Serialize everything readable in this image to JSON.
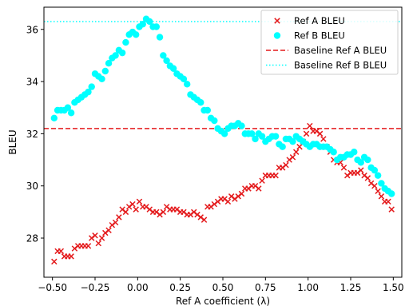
{
  "chart_data": {
    "type": "scatter",
    "xlabel": "Ref A coefficient (λ)",
    "ylabel": "BLEU",
    "xlim": [
      -0.55,
      1.55
    ],
    "ylim": [
      26.5,
      36.85
    ],
    "xticks": [
      -0.5,
      -0.25,
      0.0,
      0.25,
      0.5,
      0.75,
      1.0,
      1.25,
      1.5
    ],
    "xtick_labels": [
      "−0.50",
      "−0.25",
      "0.00",
      "0.25",
      "0.50",
      "0.75",
      "1.00",
      "1.25",
      "1.50"
    ],
    "yticks": [
      28,
      30,
      32,
      34,
      36
    ],
    "ytick_labels": [
      "28",
      "30",
      "32",
      "34",
      "36"
    ],
    "grid": false,
    "legend_position": "top-right",
    "series": [
      {
        "name": "Ref A BLEU",
        "marker": "x",
        "color": "#e41a1c",
        "points": [
          [
            -0.49,
            27.1
          ],
          [
            -0.47,
            27.5
          ],
          [
            -0.45,
            27.5
          ],
          [
            -0.43,
            27.3
          ],
          [
            -0.41,
            27.3
          ],
          [
            -0.39,
            27.3
          ],
          [
            -0.37,
            27.6
          ],
          [
            -0.35,
            27.7
          ],
          [
            -0.33,
            27.7
          ],
          [
            -0.31,
            27.7
          ],
          [
            -0.29,
            27.7
          ],
          [
            -0.27,
            28.0
          ],
          [
            -0.25,
            28.1
          ],
          [
            -0.23,
            27.8
          ],
          [
            -0.21,
            28.0
          ],
          [
            -0.19,
            28.2
          ],
          [
            -0.17,
            28.3
          ],
          [
            -0.15,
            28.5
          ],
          [
            -0.13,
            28.6
          ],
          [
            -0.11,
            28.8
          ],
          [
            -0.09,
            29.1
          ],
          [
            -0.07,
            29.0
          ],
          [
            -0.05,
            29.2
          ],
          [
            -0.03,
            29.3
          ],
          [
            -0.01,
            29.1
          ],
          [
            0.01,
            29.4
          ],
          [
            0.03,
            29.2
          ],
          [
            0.05,
            29.2
          ],
          [
            0.07,
            29.1
          ],
          [
            0.09,
            29.0
          ],
          [
            0.11,
            29.0
          ],
          [
            0.13,
            28.9
          ],
          [
            0.15,
            29.0
          ],
          [
            0.17,
            29.2
          ],
          [
            0.19,
            29.1
          ],
          [
            0.21,
            29.1
          ],
          [
            0.23,
            29.1
          ],
          [
            0.25,
            29.0
          ],
          [
            0.27,
            29.0
          ],
          [
            0.29,
            28.9
          ],
          [
            0.31,
            28.9
          ],
          [
            0.33,
            29.0
          ],
          [
            0.35,
            28.9
          ],
          [
            0.37,
            28.8
          ],
          [
            0.39,
            28.7
          ],
          [
            0.41,
            29.2
          ],
          [
            0.43,
            29.2
          ],
          [
            0.45,
            29.3
          ],
          [
            0.47,
            29.4
          ],
          [
            0.49,
            29.5
          ],
          [
            0.51,
            29.5
          ],
          [
            0.53,
            29.4
          ],
          [
            0.55,
            29.6
          ],
          [
            0.57,
            29.5
          ],
          [
            0.59,
            29.6
          ],
          [
            0.61,
            29.7
          ],
          [
            0.63,
            29.9
          ],
          [
            0.65,
            29.9
          ],
          [
            0.67,
            30.0
          ],
          [
            0.69,
            30.0
          ],
          [
            0.71,
            29.9
          ],
          [
            0.73,
            30.2
          ],
          [
            0.75,
            30.4
          ],
          [
            0.77,
            30.4
          ],
          [
            0.79,
            30.4
          ],
          [
            0.81,
            30.4
          ],
          [
            0.83,
            30.7
          ],
          [
            0.85,
            30.7
          ],
          [
            0.87,
            30.8
          ],
          [
            0.89,
            31.0
          ],
          [
            0.91,
            31.1
          ],
          [
            0.93,
            31.3
          ],
          [
            0.95,
            31.5
          ],
          [
            0.97,
            31.7
          ],
          [
            0.99,
            32.0
          ],
          [
            1.01,
            32.3
          ],
          [
            1.03,
            32.1
          ],
          [
            1.05,
            32.1
          ],
          [
            1.07,
            32.0
          ],
          [
            1.09,
            31.8
          ],
          [
            1.11,
            31.5
          ],
          [
            1.13,
            31.3
          ],
          [
            1.15,
            31.0
          ],
          [
            1.17,
            30.9
          ],
          [
            1.19,
            30.9
          ],
          [
            1.21,
            30.7
          ],
          [
            1.23,
            30.4
          ],
          [
            1.25,
            30.5
          ],
          [
            1.27,
            30.5
          ],
          [
            1.29,
            30.5
          ],
          [
            1.31,
            30.6
          ],
          [
            1.33,
            30.4
          ],
          [
            1.35,
            30.3
          ],
          [
            1.37,
            30.1
          ],
          [
            1.39,
            30.0
          ],
          [
            1.41,
            29.8
          ],
          [
            1.43,
            29.6
          ],
          [
            1.45,
            29.4
          ],
          [
            1.47,
            29.4
          ],
          [
            1.49,
            29.1
          ]
        ]
      },
      {
        "name": "Ref B BLEU",
        "marker": "o",
        "color": "#00ffff",
        "points": [
          [
            -0.49,
            32.6
          ],
          [
            -0.47,
            32.9
          ],
          [
            -0.45,
            32.9
          ],
          [
            -0.43,
            32.9
          ],
          [
            -0.41,
            33.0
          ],
          [
            -0.39,
            32.8
          ],
          [
            -0.37,
            33.2
          ],
          [
            -0.35,
            33.3
          ],
          [
            -0.33,
            33.4
          ],
          [
            -0.31,
            33.5
          ],
          [
            -0.29,
            33.6
          ],
          [
            -0.27,
            33.8
          ],
          [
            -0.25,
            34.3
          ],
          [
            -0.23,
            34.2
          ],
          [
            -0.21,
            34.1
          ],
          [
            -0.19,
            34.4
          ],
          [
            -0.17,
            34.7
          ],
          [
            -0.15,
            34.9
          ],
          [
            -0.13,
            35.0
          ],
          [
            -0.11,
            35.2
          ],
          [
            -0.09,
            35.1
          ],
          [
            -0.07,
            35.5
          ],
          [
            -0.05,
            35.8
          ],
          [
            -0.03,
            35.9
          ],
          [
            -0.01,
            35.8
          ],
          [
            0.01,
            36.1
          ],
          [
            0.03,
            36.2
          ],
          [
            0.05,
            36.4
          ],
          [
            0.07,
            36.3
          ],
          [
            0.09,
            36.1
          ],
          [
            0.11,
            36.1
          ],
          [
            0.13,
            35.7
          ],
          [
            0.15,
            35.0
          ],
          [
            0.17,
            34.8
          ],
          [
            0.19,
            34.6
          ],
          [
            0.21,
            34.5
          ],
          [
            0.23,
            34.3
          ],
          [
            0.25,
            34.2
          ],
          [
            0.27,
            34.1
          ],
          [
            0.29,
            33.9
          ],
          [
            0.31,
            33.5
          ],
          [
            0.33,
            33.4
          ],
          [
            0.35,
            33.3
          ],
          [
            0.37,
            33.2
          ],
          [
            0.39,
            32.9
          ],
          [
            0.41,
            32.9
          ],
          [
            0.43,
            32.6
          ],
          [
            0.45,
            32.5
          ],
          [
            0.47,
            32.2
          ],
          [
            0.49,
            32.1
          ],
          [
            0.51,
            32.0
          ],
          [
            0.53,
            32.2
          ],
          [
            0.55,
            32.3
          ],
          [
            0.57,
            32.3
          ],
          [
            0.59,
            32.4
          ],
          [
            0.61,
            32.3
          ],
          [
            0.63,
            32.0
          ],
          [
            0.65,
            32.0
          ],
          [
            0.67,
            32.0
          ],
          [
            0.69,
            31.8
          ],
          [
            0.71,
            32.0
          ],
          [
            0.73,
            31.9
          ],
          [
            0.75,
            31.7
          ],
          [
            0.77,
            31.8
          ],
          [
            0.79,
            31.9
          ],
          [
            0.81,
            31.9
          ],
          [
            0.83,
            31.6
          ],
          [
            0.85,
            31.5
          ],
          [
            0.87,
            31.8
          ],
          [
            0.89,
            31.8
          ],
          [
            0.91,
            31.7
          ],
          [
            0.93,
            31.9
          ],
          [
            0.95,
            31.8
          ],
          [
            0.97,
            31.7
          ],
          [
            0.99,
            31.6
          ],
          [
            1.01,
            31.5
          ],
          [
            1.03,
            31.6
          ],
          [
            1.05,
            31.6
          ],
          [
            1.07,
            31.5
          ],
          [
            1.09,
            31.5
          ],
          [
            1.11,
            31.5
          ],
          [
            1.13,
            31.4
          ],
          [
            1.15,
            31.3
          ],
          [
            1.17,
            31.0
          ],
          [
            1.19,
            31.1
          ],
          [
            1.21,
            31.1
          ],
          [
            1.23,
            31.2
          ],
          [
            1.25,
            31.2
          ],
          [
            1.27,
            31.3
          ],
          [
            1.29,
            31.0
          ],
          [
            1.31,
            30.9
          ],
          [
            1.33,
            31.1
          ],
          [
            1.35,
            31.0
          ],
          [
            1.37,
            30.7
          ],
          [
            1.39,
            30.6
          ],
          [
            1.41,
            30.4
          ],
          [
            1.43,
            30.1
          ],
          [
            1.45,
            29.9
          ],
          [
            1.47,
            29.8
          ],
          [
            1.49,
            29.7
          ]
        ]
      }
    ],
    "hlines": [
      {
        "name": "Baseline Ref A BLEU",
        "y": 32.2,
        "style": "dashed",
        "color": "#e41a1c"
      },
      {
        "name": "Baseline Ref B BLEU",
        "y": 36.3,
        "style": "dotted",
        "color": "#00ffff"
      }
    ]
  }
}
